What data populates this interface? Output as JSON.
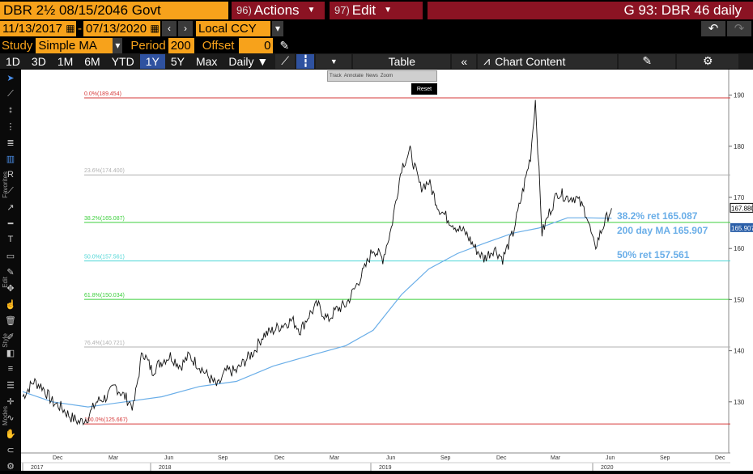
{
  "header": {
    "security": "DBR 2½ 08/15/2046 Govt",
    "actions_key": "96)",
    "actions_label": "Actions",
    "edit_key": "97)",
    "edit_label": "Edit",
    "graph_name": "G 93: DBR 46 daily"
  },
  "dates": {
    "start": "11/13/2017",
    "end": "07/13/2020",
    "currency": "Local CCY"
  },
  "study": {
    "label": "Study",
    "value": "Simple MA",
    "period_label": "Period",
    "period_value": "200",
    "offset_label": "Offset",
    "offset_value": "0"
  },
  "toolbar": {
    "ranges": [
      "1D",
      "3D",
      "1M",
      "6M",
      "YTD",
      "1Y",
      "5Y",
      "Max"
    ],
    "active_range": "1Y",
    "frequency": "Daily ▼",
    "table_label": "Table",
    "chart_content_label": "Chart Content"
  },
  "tooltip": {
    "items": [
      "Track",
      "Annotate",
      "News",
      "Zoom"
    ],
    "reset": "Reset"
  },
  "lefttool": {
    "favorites": "Favorites",
    "edit": "Edit",
    "style": "Style",
    "modes": "Modes"
  },
  "colors": {
    "orange": "#f7a21b",
    "maroon": "#8b1323",
    "ma_line": "#6aaee8",
    "fib_red": "#d63a3a",
    "fib_green": "#3ccf3c",
    "fib_cyan": "#4fd6d6",
    "fib_grey": "#b0b0b0"
  },
  "chart_data": {
    "type": "line",
    "title": "",
    "ylim": [
      120,
      195
    ],
    "y_ticks": [
      130,
      140,
      150,
      160,
      170,
      180,
      190
    ],
    "x_month_labels": [
      "Dec",
      "Mar",
      "Jun",
      "Sep",
      "Dec",
      "Mar",
      "Jun",
      "Sep",
      "Dec",
      "Mar",
      "Jun",
      "Sep",
      "Dec"
    ],
    "x_year_labels": [
      "2017",
      "2018",
      "2019",
      "2020"
    ],
    "price_series": {
      "name": "",
      "x": [
        "2017-11-13",
        "2017-12-01",
        "2017-12-15",
        "2018-01-01",
        "2018-01-15",
        "2018-02-01",
        "2018-02-15",
        "2018-03-01",
        "2018-03-15",
        "2018-04-01",
        "2018-04-15",
        "2018-05-01",
        "2018-05-15",
        "2018-05-30",
        "2018-06-15",
        "2018-07-01",
        "2018-07-15",
        "2018-08-01",
        "2018-08-15",
        "2018-09-01",
        "2018-09-15",
        "2018-10-01",
        "2018-10-15",
        "2018-11-01",
        "2018-11-15",
        "2018-12-01",
        "2018-12-15",
        "2019-01-01",
        "2019-01-15",
        "2019-02-01",
        "2019-02-15",
        "2019-03-01",
        "2019-03-15",
        "2019-04-01",
        "2019-04-15",
        "2019-05-01",
        "2019-05-15",
        "2019-06-01",
        "2019-06-15",
        "2019-07-01",
        "2019-07-15",
        "2019-08-01",
        "2019-08-15",
        "2019-09-01",
        "2019-09-15",
        "2019-10-01",
        "2019-10-15",
        "2019-11-01",
        "2019-11-15",
        "2019-12-01",
        "2019-12-15",
        "2020-01-01",
        "2020-01-15",
        "2020-02-01",
        "2020-02-15",
        "2020-03-01",
        "2020-03-09",
        "2020-03-15",
        "2020-03-20",
        "2020-04-01",
        "2020-04-15",
        "2020-05-01",
        "2020-05-15",
        "2020-06-01",
        "2020-06-15",
        "2020-07-01",
        "2020-07-13"
      ],
      "y": [
        131,
        134,
        133,
        130,
        129,
        127,
        126,
        127,
        130,
        131,
        133,
        131,
        129,
        140,
        136,
        138,
        139,
        137,
        139,
        137,
        135,
        133,
        136,
        136,
        138,
        140,
        143,
        144,
        145,
        146,
        144,
        147,
        149,
        146,
        148,
        149,
        152,
        156,
        160,
        158,
        164,
        176,
        179,
        172,
        173,
        168,
        166,
        164,
        163,
        160,
        158,
        160,
        158,
        163,
        170,
        178,
        189,
        175,
        163,
        167,
        171,
        170,
        170,
        167,
        160,
        165,
        167.88
      ]
    },
    "ma_series": {
      "name": "",
      "x": [
        "2017-11-13",
        "2018-01-01",
        "2018-03-01",
        "2018-05-01",
        "2018-07-01",
        "2018-09-01",
        "2018-11-01",
        "2019-01-01",
        "2019-03-01",
        "2019-05-01",
        "2019-06-15",
        "2019-08-01",
        "2019-09-15",
        "2019-11-01",
        "2019-12-15",
        "2020-02-01",
        "2020-03-15",
        "2020-05-01",
        "2020-06-01",
        "2020-07-13"
      ],
      "y": [
        132,
        130,
        129,
        130,
        131,
        133,
        134,
        137,
        139,
        141,
        144,
        151,
        156,
        159,
        161,
        163,
        164,
        166,
        166,
        165.907
      ]
    },
    "fib_levels": [
      {
        "label": "0.0%(189.454)",
        "value": 189.454,
        "color": "#d63a3a"
      },
      {
        "label": "23.6%(174.400)",
        "value": 174.4,
        "color": "#b0b0b0"
      },
      {
        "label": "38.2%(165.087)",
        "value": 165.087,
        "color": "#3ccf3c"
      },
      {
        "label": "50.0%(157.561)",
        "value": 157.561,
        "color": "#4fd6d6"
      },
      {
        "label": "61.8%(150.034)",
        "value": 150.034,
        "color": "#3ccf3c"
      },
      {
        "label": "76.4%(140.721)",
        "value": 140.721,
        "color": "#b0b0b0"
      },
      {
        "label": "100.0%(125.667)",
        "value": 125.667,
        "color": "#d63a3a"
      }
    ],
    "annotations": [
      {
        "text": "38.2% ret 165.087",
        "y": 165.087
      },
      {
        "text": "200 day MA 165.907",
        "y": 165.907
      },
      {
        "text": "50% ret 157.561",
        "y": 157.561
      }
    ],
    "last_price_label": "167.880",
    "last_ma_label": "165.907",
    "grid": false
  }
}
